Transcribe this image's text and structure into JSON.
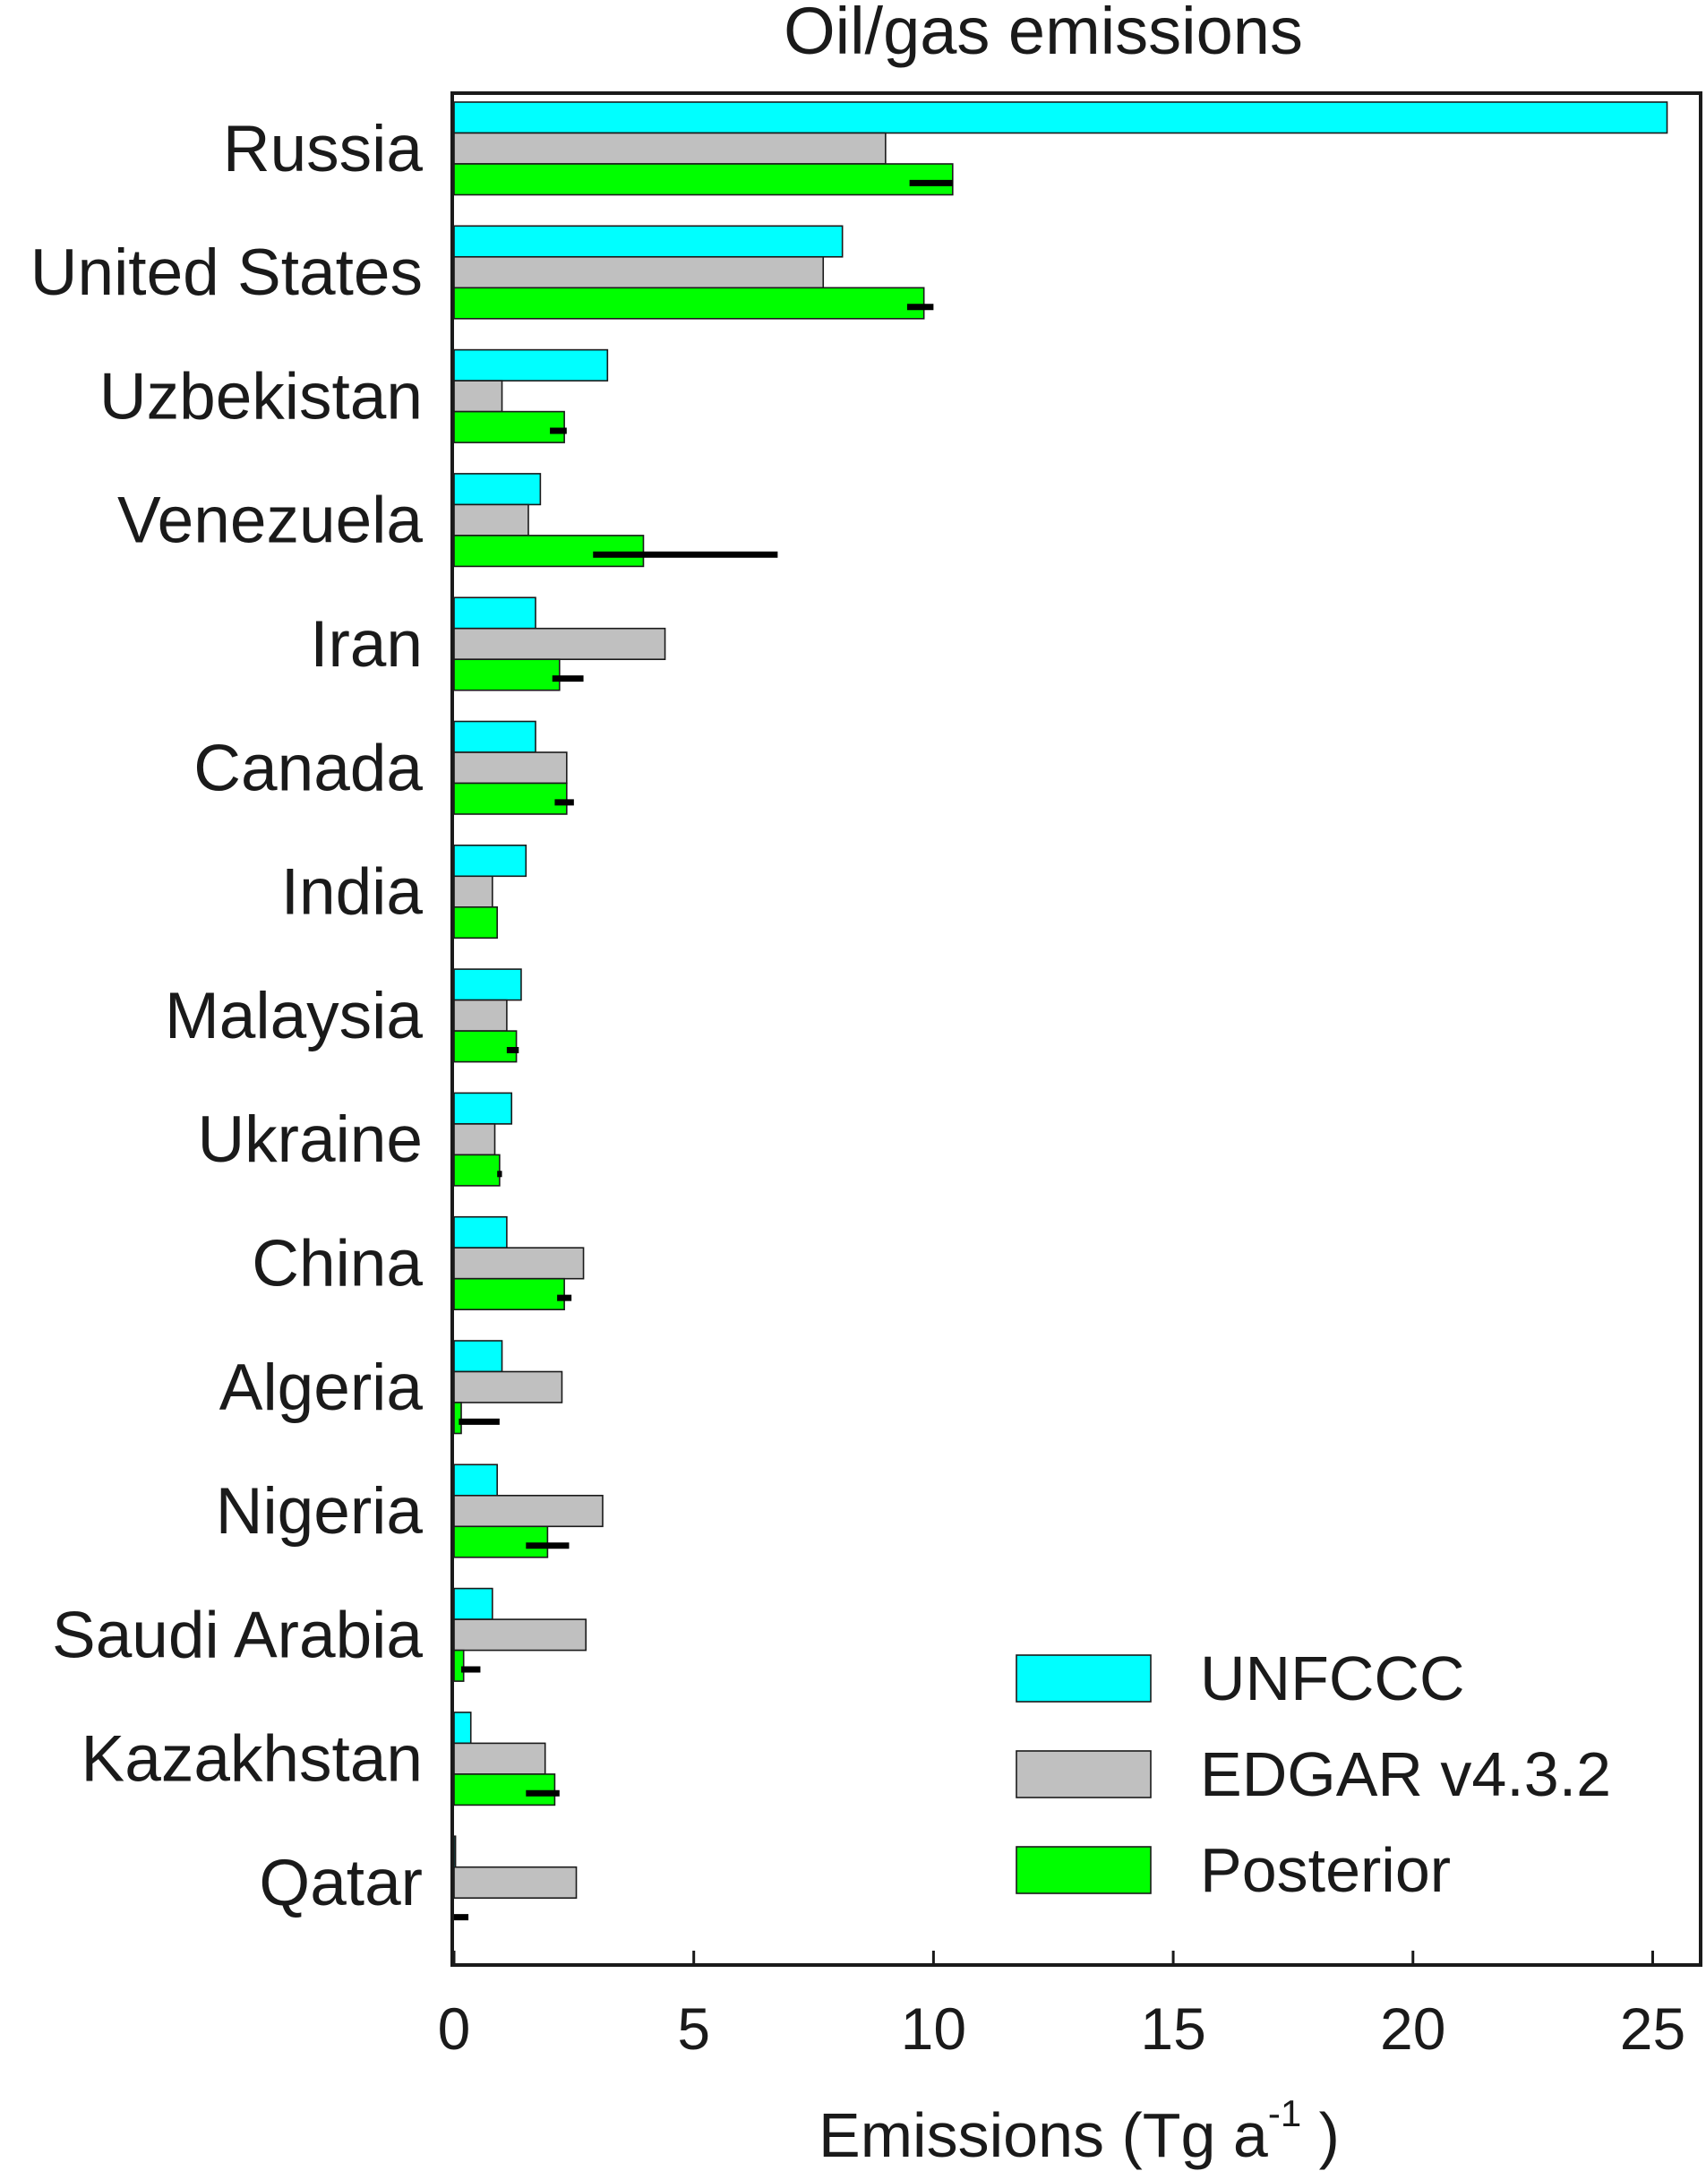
{
  "chart_data": {
    "type": "bar",
    "orientation": "horizontal",
    "title": "Oil/gas emissions",
    "xlabel": "Emissions (Tg a",
    "xlabel_superscript": "-1",
    "xlabel_suffix": " )",
    "ylabel": "",
    "xlim": [
      0,
      26
    ],
    "xticks": [
      0,
      5,
      10,
      15,
      20,
      25
    ],
    "grid": false,
    "legend_position": "bottom-right",
    "categories": [
      "Russia",
      "United States",
      "Uzbekistan",
      "Venezuela",
      "Iran",
      "Canada",
      "India",
      "Malaysia",
      "Ukraine",
      "China",
      "Algeria",
      "Nigeria",
      "Saudi Arabia",
      "Kazakhstan",
      "Qatar"
    ],
    "series": [
      {
        "name": "UNFCCC",
        "color": "#00ffff",
        "values": [
          25.3,
          8.1,
          3.2,
          1.8,
          1.7,
          1.7,
          1.5,
          1.4,
          1.2,
          1.1,
          1.0,
          0.9,
          0.8,
          0.35,
          0.03
        ]
      },
      {
        "name": "EDGAR v4.3.2",
        "color": "#c0c0c0",
        "values": [
          9.0,
          7.7,
          1.0,
          1.55,
          4.4,
          2.35,
          0.8,
          1.1,
          0.85,
          2.7,
          2.25,
          3.1,
          2.75,
          1.9,
          2.55
        ]
      },
      {
        "name": "Posterior",
        "color": "#00ff00",
        "values": [
          10.4,
          9.8,
          2.3,
          3.95,
          2.2,
          2.35,
          0.9,
          1.3,
          0.95,
          2.3,
          0.15,
          1.95,
          0.2,
          2.1,
          0.0
        ],
        "error_low": [
          9.5,
          9.45,
          2.0,
          2.9,
          2.05,
          2.1,
          0.9,
          1.1,
          0.9,
          2.15,
          0.1,
          1.5,
          0.15,
          1.5,
          0.0
        ],
        "error_high": [
          10.4,
          10.0,
          2.35,
          6.75,
          2.7,
          2.5,
          0.9,
          1.35,
          1.0,
          2.45,
          0.95,
          2.4,
          0.55,
          2.2,
          0.3
        ]
      }
    ]
  }
}
